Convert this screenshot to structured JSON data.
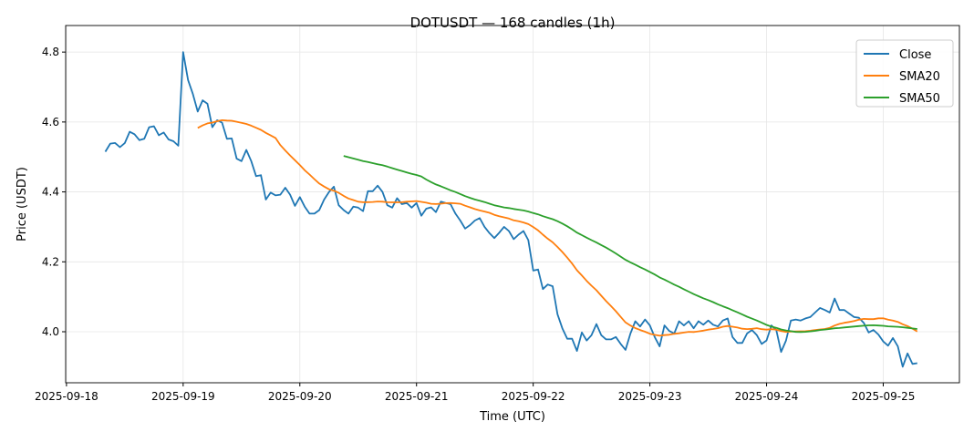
{
  "chart_data": {
    "type": "line",
    "title": "DOTUSDT — 168 candles (1h)",
    "xlabel": "Time (UTC)",
    "ylabel": "Price (USDT)",
    "x_start": "2025-09-18T08:00:00Z",
    "interval_hours": 1,
    "xlim": [
      "2025-09-17T23:50:00Z",
      "2025-09-25T15:40:00Z"
    ],
    "ylim": [
      3.854,
      4.876
    ],
    "grid": true,
    "legend_position": "top-right",
    "x_ticks": [
      "2025-09-18",
      "2025-09-19",
      "2025-09-20",
      "2025-09-21",
      "2025-09-22",
      "2025-09-23",
      "2025-09-24",
      "2025-09-25"
    ],
    "y_ticks": [
      "4.0",
      "4.2",
      "4.4",
      "4.6",
      "4.8"
    ],
    "series": [
      {
        "name": "Close",
        "color": "#1f77b4",
        "values": [
          4.515,
          4.538,
          4.54,
          4.528,
          4.54,
          4.572,
          4.565,
          4.548,
          4.552,
          4.585,
          4.588,
          4.562,
          4.57,
          4.55,
          4.545,
          4.532,
          4.8,
          4.72,
          4.68,
          4.63,
          4.662,
          4.652,
          4.585,
          4.605,
          4.598,
          4.552,
          4.553,
          4.495,
          4.488,
          4.52,
          4.488,
          4.445,
          4.448,
          4.378,
          4.398,
          4.39,
          4.392,
          4.412,
          4.392,
          4.36,
          4.385,
          4.358,
          4.338,
          4.338,
          4.348,
          4.378,
          4.4,
          4.415,
          4.362,
          4.348,
          4.338,
          4.358,
          4.355,
          4.345,
          4.402,
          4.402,
          4.418,
          4.4,
          4.362,
          4.355,
          4.382,
          4.365,
          4.368,
          4.355,
          4.368,
          4.332,
          4.352,
          4.356,
          4.342,
          4.372,
          4.368,
          4.365,
          4.338,
          4.318,
          4.295,
          4.305,
          4.318,
          4.325,
          4.3,
          4.282,
          4.268,
          4.283,
          4.3,
          4.288,
          4.265,
          4.278,
          4.288,
          4.262,
          4.175,
          4.178,
          4.122,
          4.135,
          4.13,
          4.05,
          4.01,
          3.98,
          3.98,
          3.945,
          3.998,
          3.975,
          3.99,
          4.022,
          3.99,
          3.978,
          3.978,
          3.985,
          3.965,
          3.948,
          3.995,
          4.03,
          4.015,
          4.035,
          4.018,
          3.985,
          3.958,
          4.018,
          4.002,
          3.995,
          4.03,
          4.018,
          4.03,
          4.01,
          4.03,
          4.02,
          4.032,
          4.02,
          4.015,
          4.032,
          4.038,
          3.985,
          3.968,
          3.968,
          3.995,
          4.005,
          3.99,
          3.965,
          3.975,
          4.018,
          4.005,
          3.942,
          3.975,
          4.032,
          4.035,
          4.032,
          4.038,
          4.042,
          4.055,
          4.068,
          4.062,
          4.055,
          4.095,
          4.062,
          4.062,
          4.052,
          4.042,
          4.04,
          4.025,
          3.998,
          4.005,
          3.992,
          3.972,
          3.96,
          3.982,
          3.958,
          3.9,
          3.938,
          3.908,
          3.91
        ]
      },
      {
        "name": "SMA20",
        "color": "#ff7f0e",
        "window": 20
      },
      {
        "name": "SMA50",
        "color": "#2ca02c",
        "window": 50
      }
    ]
  }
}
